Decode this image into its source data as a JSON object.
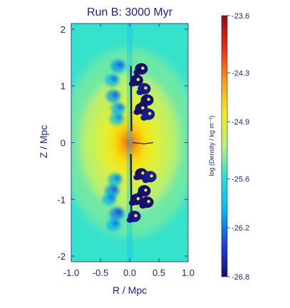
{
  "chart_data": {
    "type": "heatmap",
    "title": "Run B:  3000 Myr",
    "xlabel": "R / Mpc",
    "ylabel": "Z / Mpc",
    "xlim": [
      -1.0,
      1.0
    ],
    "ylim": [
      -2.1,
      2.1
    ],
    "xticks": [
      {
        "value": -1.0,
        "label": "-1.0"
      },
      {
        "value": -0.5,
        "label": "-0.5"
      },
      {
        "value": 0.0,
        "label": "0.0"
      },
      {
        "value": 0.5,
        "label": "0.5"
      },
      {
        "value": 1.0,
        "label": "1.0"
      }
    ],
    "yticks": [
      {
        "value": 2,
        "label": "2"
      },
      {
        "value": 1,
        "label": "1"
      },
      {
        "value": 0,
        "label": "0"
      },
      {
        "value": -1,
        "label": "-1"
      },
      {
        "value": -2,
        "label": "-2"
      }
    ],
    "colorbar": {
      "label": "log (Density / kg m⁻³)",
      "range": [
        -26.8,
        -23.6
      ],
      "ticks": [
        {
          "value": -23.6,
          "label": "-23.6"
        },
        {
          "value": -24.3,
          "label": "-24.3"
        },
        {
          "value": -24.9,
          "label": "-24.9"
        },
        {
          "value": -25.6,
          "label": "-25.6"
        },
        {
          "value": -26.2,
          "label": "-26.2"
        },
        {
          "value": -26.8,
          "label": "-26.8"
        }
      ],
      "colormap": [
        "#15106e",
        "#1f3fe0",
        "#00b8f0",
        "#22e0d8",
        "#b8f070",
        "#f6ee10",
        "#ff9a10",
        "#f02a0a",
        "#9a0a0a"
      ]
    },
    "background_levels": [
      {
        "r": 1.5,
        "value": -25.55
      },
      {
        "r": 1.1,
        "value": -25.4
      },
      {
        "r": 0.8,
        "value": -25.15
      },
      {
        "r": 0.55,
        "value": -24.95
      },
      {
        "r": 0.35,
        "value": -24.75
      },
      {
        "r": 0.2,
        "value": -24.5
      },
      {
        "r": 0.1,
        "value": -24.2
      },
      {
        "r": 0.05,
        "value": -23.8
      }
    ],
    "left_structures": [
      {
        "r": 0.2,
        "z": 1.35,
        "value": -26.1
      },
      {
        "r": 0.3,
        "z": 1.1,
        "value": -26.0
      },
      {
        "r": 0.28,
        "z": 0.82,
        "value": -26.1
      },
      {
        "r": 0.2,
        "z": 0.6,
        "value": -26.0
      },
      {
        "r": 0.22,
        "z": 0.42,
        "value": -25.9
      },
      {
        "r": 0.25,
        "z": -0.65,
        "value": -26.0
      },
      {
        "r": 0.3,
        "z": -0.85,
        "value": -26.1
      },
      {
        "r": 0.35,
        "z": -1.0,
        "value": -26.0
      },
      {
        "r": 0.22,
        "z": -1.25,
        "value": -26.2
      },
      {
        "r": 0.28,
        "z": -1.45,
        "value": -26.0
      }
    ],
    "right_structures": [
      {
        "r": 0.2,
        "z": 1.3,
        "value": -26.8
      },
      {
        "r": 0.12,
        "z": 1.1,
        "value": -26.8
      },
      {
        "r": 0.25,
        "z": 0.95,
        "value": -26.7
      },
      {
        "r": 0.3,
        "z": 0.75,
        "value": -26.8
      },
      {
        "r": 0.2,
        "z": 0.6,
        "value": -26.8
      },
      {
        "r": 0.32,
        "z": 0.5,
        "value": -26.7
      },
      {
        "r": 0.2,
        "z": -0.55,
        "value": -26.8
      },
      {
        "r": 0.35,
        "z": -0.6,
        "value": -26.7
      },
      {
        "r": 0.25,
        "z": -0.85,
        "value": -26.8
      },
      {
        "r": 0.12,
        "z": -1.0,
        "value": -26.8
      },
      {
        "r": 0.3,
        "z": -1.05,
        "value": -26.8
      },
      {
        "r": 0.08,
        "z": -1.3,
        "value": -26.7
      }
    ]
  }
}
